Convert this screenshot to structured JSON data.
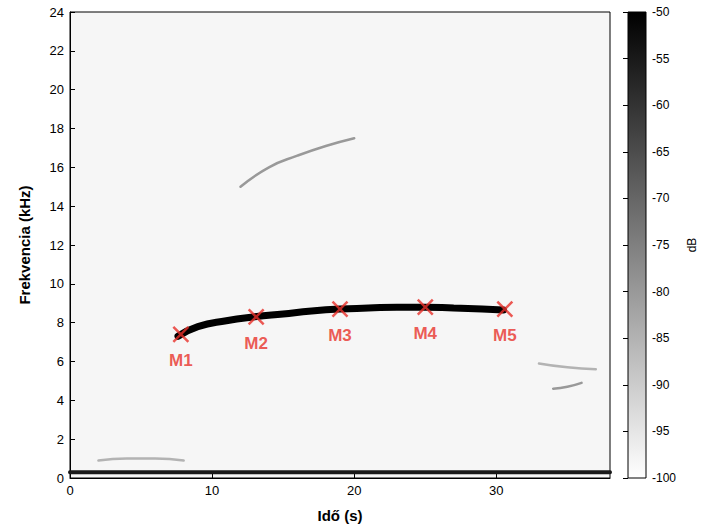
{
  "chart_data": {
    "type": "spectrogram",
    "x_label": "Idő (s)",
    "y_label": "Frekvencia (kHz)",
    "xlim": [
      0,
      38
    ],
    "xticks": [
      0,
      10,
      20,
      30
    ],
    "ylim": [
      0,
      24
    ],
    "yticks": [
      0,
      2,
      4,
      6,
      8,
      10,
      12,
      14,
      16,
      18,
      20,
      22,
      24
    ],
    "colorbar": {
      "label": "dB",
      "range": [
        -100,
        -50
      ],
      "ticks": [
        -50,
        -55,
        -60,
        -65,
        -70,
        -75,
        -80,
        -85,
        -90,
        -95,
        -100
      ]
    },
    "ridges": [
      {
        "x": [
          7.6,
          9,
          11,
          13,
          15,
          17,
          19,
          21,
          23,
          25,
          27,
          29,
          30.5
        ],
        "y": [
          7.3,
          7.8,
          8.1,
          8.3,
          8.45,
          8.6,
          8.7,
          8.75,
          8.8,
          8.8,
          8.75,
          8.7,
          8.65
        ],
        "db": -50,
        "line_style": "thick"
      },
      {
        "x": [
          0,
          5,
          10,
          15,
          20,
          25,
          30,
          35,
          38
        ],
        "y": [
          0.3,
          0.3,
          0.3,
          0.3,
          0.3,
          0.3,
          0.3,
          0.3,
          0.3
        ],
        "db": -55,
        "line_style": "medium"
      },
      {
        "x": [
          12,
          14,
          16,
          18,
          20
        ],
        "y": [
          15.0,
          16.0,
          16.6,
          17.1,
          17.5
        ],
        "db": -80,
        "line_style": "thin"
      },
      {
        "x": [
          2,
          4,
          6,
          8
        ],
        "y": [
          0.9,
          1.0,
          1.0,
          0.9
        ],
        "db": -85,
        "line_style": "thin"
      },
      {
        "x": [
          33,
          35,
          37
        ],
        "y": [
          5.9,
          5.7,
          5.6
        ],
        "db": -85,
        "line_style": "thin"
      },
      {
        "x": [
          34,
          35,
          36
        ],
        "y": [
          4.6,
          4.7,
          4.9
        ],
        "db": -80,
        "line_style": "thin"
      }
    ],
    "markers": [
      {
        "label": "M1",
        "x": 7.8,
        "y": 7.4
      },
      {
        "label": "M2",
        "x": 13.1,
        "y": 8.3
      },
      {
        "label": "M3",
        "x": 19.0,
        "y": 8.7
      },
      {
        "label": "M4",
        "x": 25.0,
        "y": 8.8
      },
      {
        "label": "M5",
        "x": 30.6,
        "y": 8.7
      }
    ],
    "marker": "x",
    "color": "#e8312a"
  }
}
